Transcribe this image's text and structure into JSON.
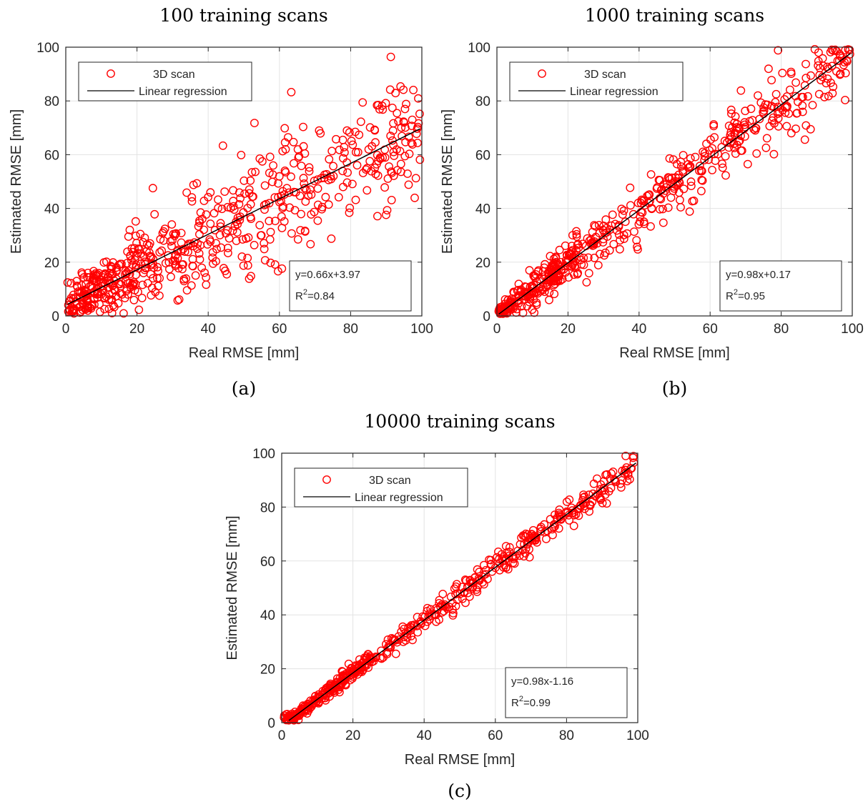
{
  "colors": {
    "marker": "#ff0000",
    "regression": "#000000",
    "grid": "#e3e3e3",
    "axis": "#262626"
  },
  "chart_data": [
    {
      "type": "scatter",
      "title": "100 training scans",
      "caption": "(a)",
      "xlabel": "Real RMSE [mm]",
      "ylabel": "Estimated RMSE [mm]",
      "xlim": [
        0,
        100
      ],
      "ylim": [
        0,
        100
      ],
      "xticks": [
        "0",
        "20",
        "40",
        "60",
        "80",
        "100"
      ],
      "yticks": [
        "0",
        "20",
        "40",
        "60",
        "80",
        "100"
      ],
      "grid": true,
      "legend": {
        "position": "top-left",
        "scatter_label": "3D scan",
        "line_label": "Linear regression"
      },
      "annotation": {
        "position": "bottom-right",
        "equation": "y=0.66x+3.97",
        "r2_label": "R",
        "r2_sup": "2",
        "r2_value": "=0.84"
      },
      "regression": {
        "slope": 0.66,
        "intercept": 3.97,
        "x_range": [
          0.5,
          99.5
        ]
      },
      "points": {
        "generator": {
          "spread": 11.5,
          "x_range": [
            0.5,
            99.5
          ],
          "dense_below": 25,
          "seed": 11
        },
        "x": [],
        "y": [],
        "count": 620
      }
    },
    {
      "type": "scatter",
      "title": "1000 training scans",
      "caption": "(b)",
      "xlabel": "Real RMSE [mm]",
      "ylabel": "Estimated RMSE [mm]",
      "xlim": [
        0,
        100
      ],
      "ylim": [
        0,
        100
      ],
      "xticks": [
        "0",
        "20",
        "40",
        "60",
        "80",
        "100"
      ],
      "yticks": [
        "0",
        "20",
        "40",
        "60",
        "80",
        "100"
      ],
      "grid": true,
      "legend": {
        "position": "top-left",
        "scatter_label": "3D scan",
        "line_label": "Linear regression"
      },
      "annotation": {
        "position": "bottom-right",
        "equation": "y=0.98x+0.17",
        "r2_label": "R",
        "r2_sup": "2",
        "r2_value": "=0.95"
      },
      "regression": {
        "slope": 0.98,
        "intercept": 0.17,
        "x_range": [
          0.5,
          99.5
        ]
      },
      "points": {
        "generator": {
          "spread": 6.5,
          "x_range": [
            0.5,
            99.5
          ],
          "dense_below": 25,
          "seed": 23
        },
        "count": 560
      }
    },
    {
      "type": "scatter",
      "title": "10000 training scans",
      "caption": "(c)",
      "xlabel": "Real RMSE [mm]",
      "ylabel": "Estimated RMSE [mm]",
      "xlim": [
        0,
        100
      ],
      "ylim": [
        0,
        100
      ],
      "xticks": [
        "0",
        "20",
        "40",
        "60",
        "80",
        "100"
      ],
      "yticks": [
        "0",
        "20",
        "40",
        "60",
        "80",
        "100"
      ],
      "grid": true,
      "legend": {
        "position": "top-left",
        "scatter_label": "3D scan",
        "line_label": "Linear regression"
      },
      "annotation": {
        "position": "bottom-right",
        "equation": "y=0.98x-1.16",
        "r2_label": "R",
        "r2_sup": "2",
        "r2_value": "=0.99"
      },
      "regression": {
        "slope": 0.98,
        "intercept": -1.16,
        "x_range": [
          2.0,
          99.5
        ]
      },
      "points": {
        "generator": {
          "spread": 2.6,
          "x_range": [
            0.5,
            99.0
          ],
          "dense_below": 25,
          "seed": 37
        },
        "count": 520
      }
    }
  ]
}
